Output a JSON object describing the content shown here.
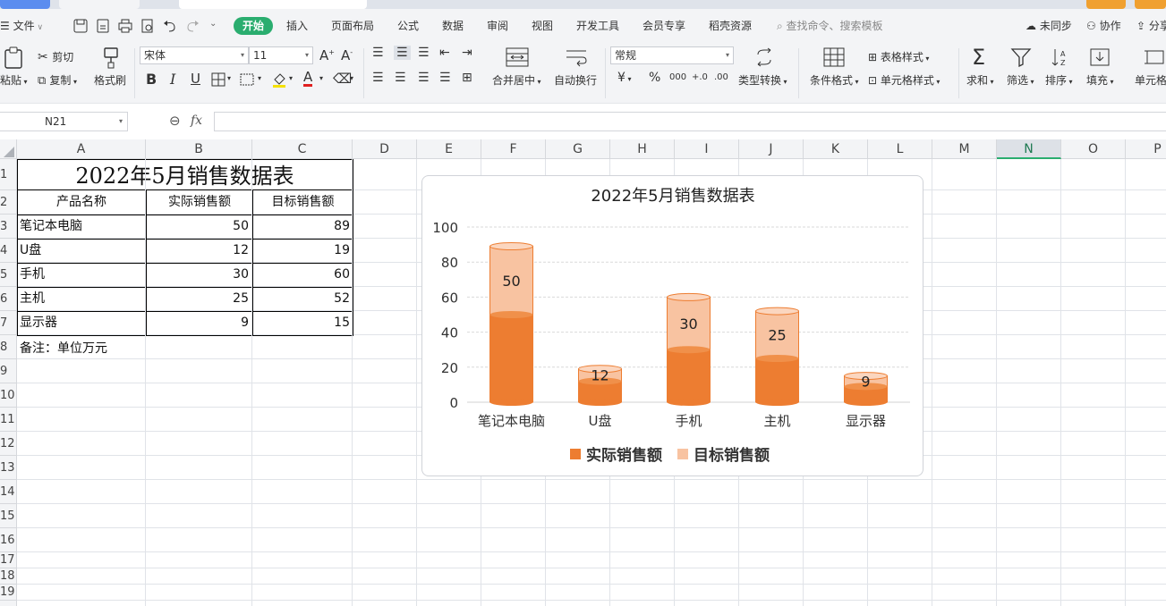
{
  "ribbon_tabs": {
    "file": "文件",
    "start": "开始",
    "insert": "插入",
    "page_layout": "页面布局",
    "formula": "公式",
    "data": "数据",
    "review": "审阅",
    "view": "视图",
    "dev_tools": "开发工具",
    "member": "会员专享",
    "docer": "稻壳资源",
    "search": "查找命令、搜索模板",
    "sync": "未同步",
    "collab": "协作",
    "share": "分享"
  },
  "ribbon": {
    "paste": "粘贴",
    "cut": "剪切",
    "copy": "复制",
    "format_painter": "格式刷",
    "font_name": "宋体",
    "font_size": "11",
    "merge_center": "合并居中",
    "wrap_text": "自动换行",
    "number_format": "常规",
    "type_convert": "类型转换",
    "conditional_format": "条件格式",
    "table_style": "表格样式",
    "cell_style": "单元格样式",
    "sum": "求和",
    "filter": "筛选",
    "sort": "排序",
    "fill": "填充",
    "cell": "单元格",
    "bold": "B",
    "italic": "I",
    "underline": "U",
    "currency": "¥",
    "percent": "%",
    "thousands": "000",
    "inc_decimal": "+.0",
    "dec_decimal": ".00"
  },
  "formula_bar": {
    "cell_ref": "N21",
    "fx": "fx"
  },
  "columns": [
    "A",
    "B",
    "C",
    "D",
    "E",
    "F",
    "G",
    "H",
    "I",
    "J",
    "K",
    "L",
    "M",
    "N",
    "O",
    "P"
  ],
  "selected_column": "N",
  "rows": [
    "1",
    "2",
    "3",
    "4",
    "5",
    "6",
    "7",
    "8",
    "9",
    "10",
    "11",
    "12",
    "13",
    "14",
    "15",
    "16",
    "17",
    "18",
    "19"
  ],
  "sheet": {
    "title": "2022年5月销售数据表",
    "headers": [
      "产品名称",
      "实际销售额",
      "目标销售额"
    ],
    "data": [
      {
        "name": "笔记本电脑",
        "actual": "50",
        "target": "89"
      },
      {
        "name": "U盘",
        "actual": "12",
        "target": "19"
      },
      {
        "name": "手机",
        "actual": "30",
        "target": "60"
      },
      {
        "name": "主机",
        "actual": "25",
        "target": "52"
      },
      {
        "name": "显示器",
        "actual": "9",
        "target": "15"
      }
    ],
    "note": "备注：单位万元"
  },
  "chart_data": {
    "type": "bar",
    "title": "2022年5月销售数据表",
    "categories": [
      "笔记本电脑",
      "U盘",
      "手机",
      "主机",
      "显示器"
    ],
    "series": [
      {
        "name": "实际销售额",
        "values": [
          50,
          12,
          30,
          25,
          9
        ],
        "color": "#ed7d31"
      },
      {
        "name": "目标销售额",
        "values": [
          89,
          19,
          60,
          52,
          15
        ],
        "color": "#f8c3a1"
      }
    ],
    "ylim": [
      0,
      100
    ],
    "yticks": [
      "0",
      "20",
      "40",
      "60",
      "80",
      "100"
    ],
    "data_labels": [
      "50",
      "12",
      "30",
      "25",
      "9"
    ],
    "legend_position": "bottom",
    "grid": true,
    "overlap": true
  }
}
